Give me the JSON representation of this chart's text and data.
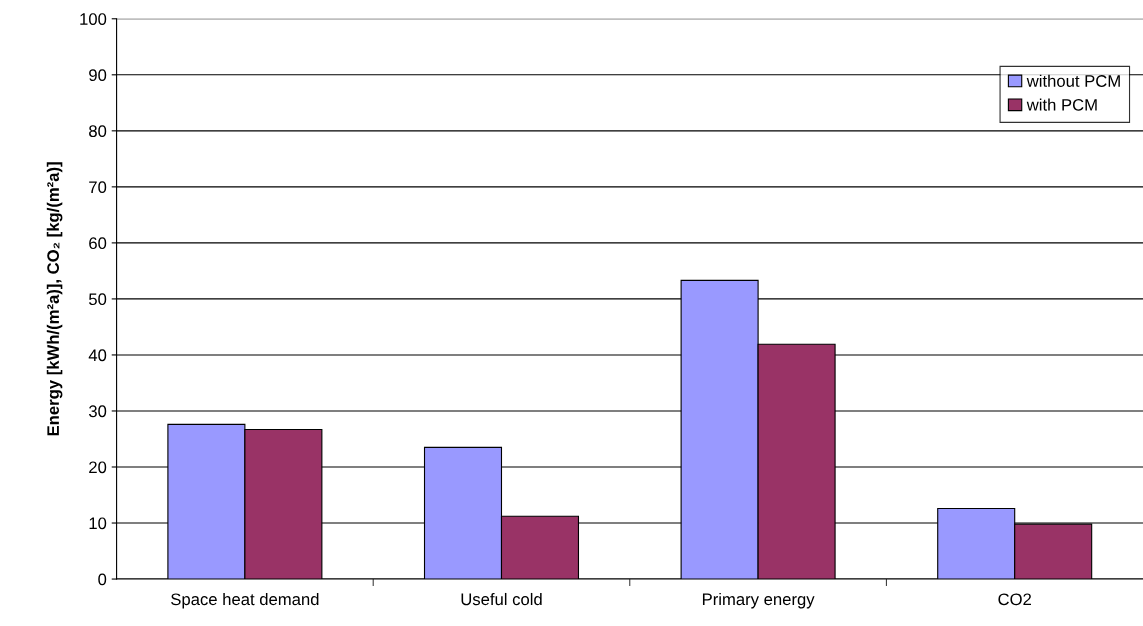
{
  "chart_data": {
    "type": "bar",
    "ylabel": "Energy [kWh/(m²a)], CO₂ [kg/(m²a)]",
    "categories": [
      "Space heat demand",
      "Useful cold",
      "Primary energy",
      "CO2"
    ],
    "series": [
      {
        "name": "without PCM",
        "color": "#9999ff",
        "values": [
          27.6,
          23.5,
          53.3,
          12.6
        ]
      },
      {
        "name": "with PCM",
        "color": "#993366",
        "values": [
          26.7,
          11.2,
          41.9,
          9.8
        ]
      }
    ],
    "ylim": [
      0,
      100
    ],
    "yticks": [
      0,
      10,
      20,
      30,
      40,
      50,
      60,
      70,
      80,
      90,
      100
    ],
    "grid": "y",
    "legend": "top right"
  }
}
